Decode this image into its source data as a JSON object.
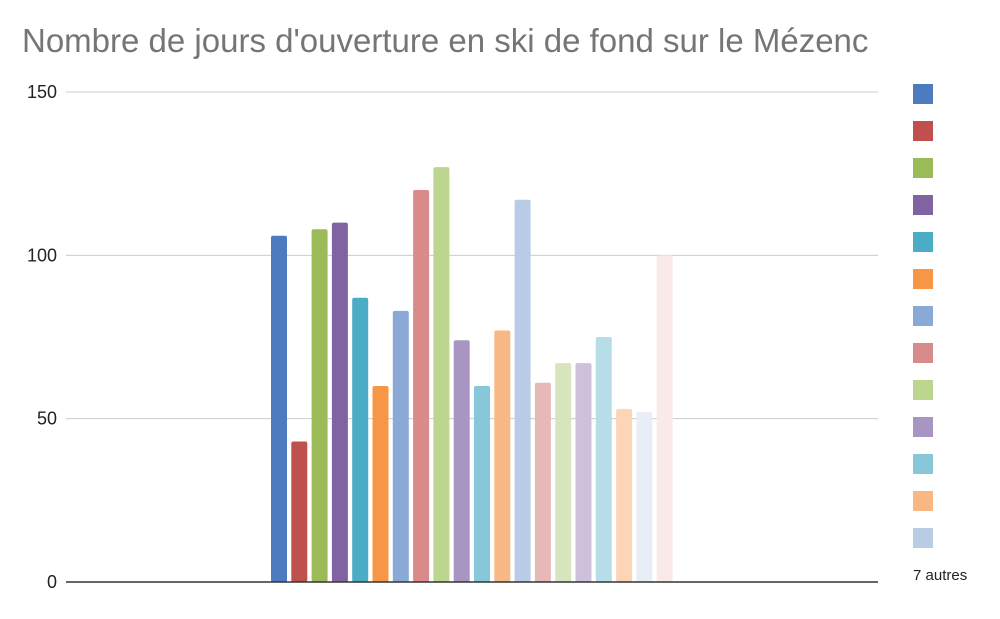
{
  "chart_data": {
    "type": "bar",
    "title": "Nombre de jours d'ouverture en ski de fond sur le Mézenc",
    "ylim": [
      0,
      150
    ],
    "yticks": [
      0,
      50,
      100,
      150
    ],
    "grid": true,
    "legend_position": "right",
    "legend_more_label": "7 autres",
    "values": [
      106,
      43,
      108,
      110,
      87,
      60,
      83,
      120,
      127,
      74,
      60,
      77,
      117,
      61,
      67,
      67,
      75,
      53,
      52,
      100
    ],
    "colors": [
      "#4c7bbf",
      "#c0504d",
      "#9bbb59",
      "#8064a2",
      "#4bacc6",
      "#f79646",
      "#8aa9d6",
      "#d88b8a",
      "#bcd58f",
      "#a995c1",
      "#86c8da",
      "#f9b883",
      "#b9cce6",
      "#e6b8b7",
      "#d7e4bd",
      "#ccc0da",
      "#b7dee8",
      "#fbd5b5",
      "#e9edf6",
      "#f9e9e9"
    ]
  }
}
